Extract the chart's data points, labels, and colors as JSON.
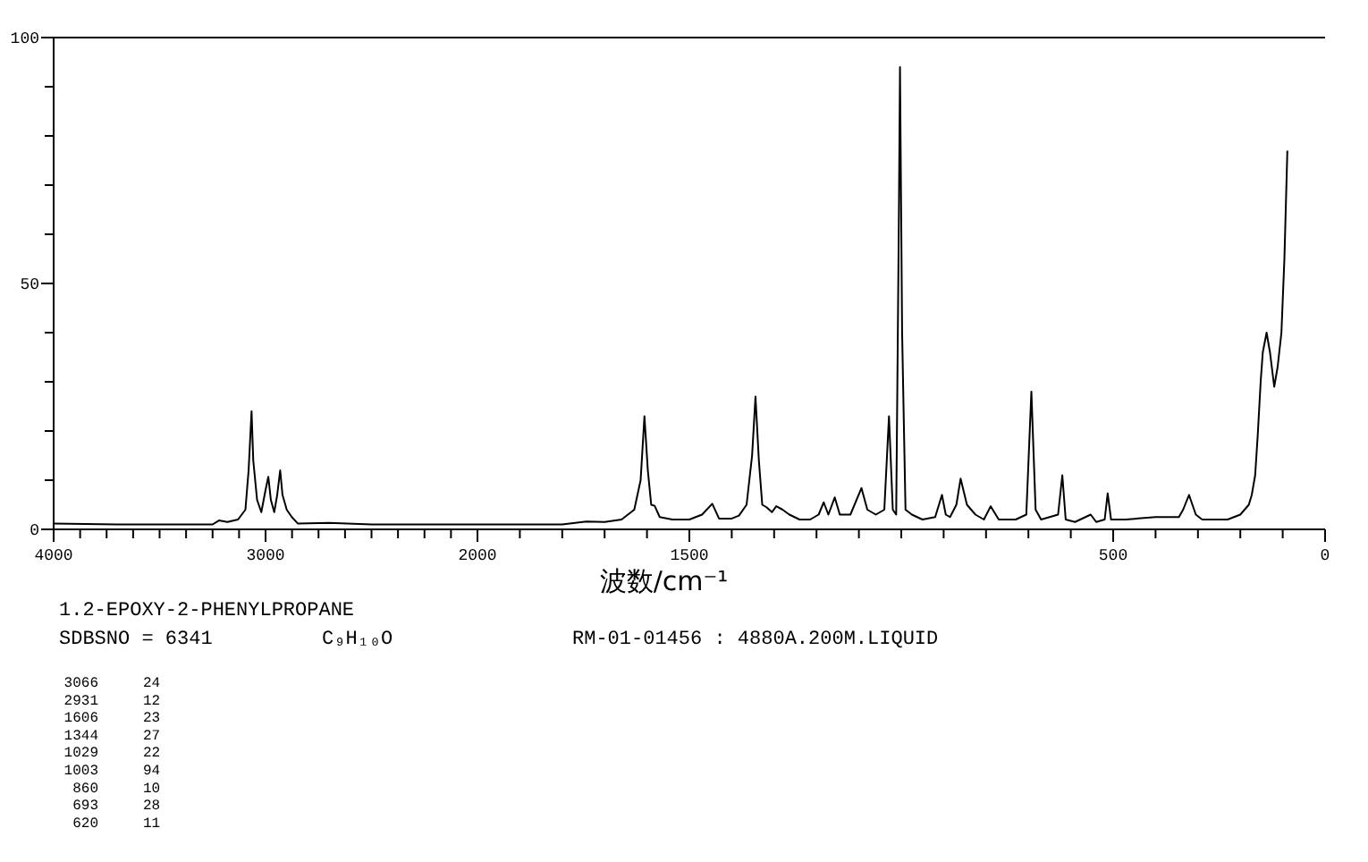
{
  "chart_data": [
    {
      "type": "line",
      "xlim": [
        4000,
        2000
      ],
      "ylim": [
        0,
        100
      ],
      "xticks": [
        4000,
        {
          "value": 3875,
          "label": null
        },
        {
          "value": 3750,
          "label": null
        },
        {
          "value": 3625,
          "label": null
        },
        {
          "value": 3500,
          "label": null
        },
        {
          "value": 3375,
          "label": null
        },
        {
          "value": 3250,
          "label": null
        },
        {
          "value": 3125,
          "label": null
        },
        3000,
        {
          "value": 2875,
          "label": null
        },
        {
          "value": 2750,
          "label": null
        },
        {
          "value": 2625,
          "label": null
        },
        {
          "value": 2500,
          "label": null
        },
        {
          "value": 2375,
          "label": null
        },
        {
          "value": 2250,
          "label": null
        },
        {
          "value": 2125,
          "label": null
        }
      ],
      "yticks": [
        0,
        {
          "value": 10,
          "label": null
        },
        {
          "value": 20,
          "label": null
        },
        {
          "value": 30,
          "label": null
        },
        {
          "value": 40,
          "label": null
        },
        50,
        {
          "value": 60,
          "label": null
        },
        {
          "value": 70,
          "label": null
        },
        {
          "value": 80,
          "label": null
        },
        {
          "value": 90,
          "label": null
        },
        100
      ],
      "line_style": "solid",
      "series": [
        {
          "color": "#000000",
          "x": [
            4000,
            3700,
            3250,
            3220,
            3180,
            3130,
            3095,
            3080,
            3066,
            3058,
            3040,
            3020,
            3000,
            2987,
            2975,
            2959,
            2945,
            2931,
            2920,
            2900,
            2876,
            2848,
            2700,
            2500,
            2200,
            2000
          ],
          "values": [
            1.2,
            1.0,
            1.0,
            1.8,
            1.5,
            2.0,
            4,
            12,
            24,
            14,
            6,
            3.5,
            8,
            10.7,
            6,
            3.5,
            7,
            12,
            7,
            4,
            2.5,
            1.2,
            1.3,
            1.0,
            1.0,
            1.0
          ]
        }
      ],
      "annotations": [
        "1.2-EPOXY-2-PHENYLPROPANE",
        "SDBSNO = 6341",
        "C₉H₁₀O",
        "RM-01-01456 : 4880A.200M.LIQUID",
        "3066   24",
        "2931   12",
        "1606   23",
        "1344   27",
        "1029   22",
        "1003   94",
        " 860   10",
        " 693   28",
        " 620   11"
      ]
    },
    {
      "type": "line",
      "xlabel": "波数/cm⁻¹",
      "xlim": [
        2000,
        0
      ],
      "ylim": [
        0,
        100
      ],
      "tick_labels": "x",
      "xticks": [
        2000,
        {
          "value": 1900,
          "label": null
        },
        {
          "value": 1800,
          "label": null
        },
        {
          "value": 1700,
          "label": null
        },
        {
          "value": 1600,
          "label": null
        },
        1500,
        {
          "value": 1400,
          "label": null
        },
        {
          "value": 1300,
          "label": null
        },
        {
          "value": 1200,
          "label": null
        },
        {
          "value": 1100,
          "label": null
        },
        {
          "value": 1000,
          "label": null
        },
        {
          "value": 900,
          "label": null
        },
        {
          "value": 800,
          "label": null
        },
        {
          "value": 700,
          "label": null
        },
        {
          "value": 600,
          "label": null
        },
        500,
        {
          "value": 400,
          "label": null
        },
        {
          "value": 300,
          "label": null
        },
        {
          "value": 200,
          "label": null
        },
        {
          "value": 100,
          "label": null
        },
        0
      ],
      "line_style": "solid",
      "series": [
        {
          "color": "#000000",
          "x": [
            2000,
            1800,
            1743,
            1700,
            1660,
            1630,
            1615,
            1606,
            1598,
            1590,
            1582,
            1570,
            1540,
            1500,
            1470,
            1446,
            1430,
            1400,
            1383,
            1365,
            1352,
            1344,
            1336,
            1328,
            1318,
            1305,
            1295,
            1280,
            1264,
            1240,
            1215,
            1195,
            1183,
            1172,
            1157,
            1145,
            1120,
            1094,
            1080,
            1060,
            1040,
            1029,
            1020,
            1012,
            1006,
            1003,
            998,
            990,
            975,
            950,
            920,
            904,
            895,
            885,
            870,
            860,
            845,
            825,
            805,
            789,
            770,
            730,
            705,
            693,
            683,
            670,
            630,
            620,
            612,
            590,
            553,
            540,
            520,
            513,
            505,
            470,
            400,
            345,
            335,
            321,
            305,
            290,
            230,
            200,
            180,
            173,
            165,
            159,
            152,
            147,
            138,
            130,
            120,
            112,
            103,
            96,
            89
          ],
          "values": [
            1.0,
            1.0,
            1.6,
            1.5,
            2.0,
            4,
            10,
            23,
            12,
            5,
            4.8,
            2.5,
            2.0,
            2.0,
            3,
            5.2,
            2.2,
            2.2,
            2.8,
            5,
            15,
            27,
            14,
            5,
            4.5,
            3.5,
            4.7,
            4,
            3,
            2,
            2,
            3,
            5.5,
            3,
            6.5,
            3,
            3,
            8.4,
            4,
            3,
            4,
            23,
            4,
            3,
            60,
            94,
            40,
            4,
            3,
            2,
            2.5,
            7,
            3,
            2.5,
            5,
            10.3,
            5,
            3,
            2,
            4.7,
            2,
            2,
            3,
            28,
            4,
            2,
            3,
            11,
            2,
            1.5,
            3,
            1.5,
            2,
            7.3,
            2,
            2,
            2.5,
            2.5,
            4,
            7,
            3,
            2,
            2,
            3,
            5,
            7,
            11,
            19,
            30,
            36,
            40,
            36,
            29,
            33,
            40,
            55,
            77
          ]
        }
      ]
    }
  ]
}
